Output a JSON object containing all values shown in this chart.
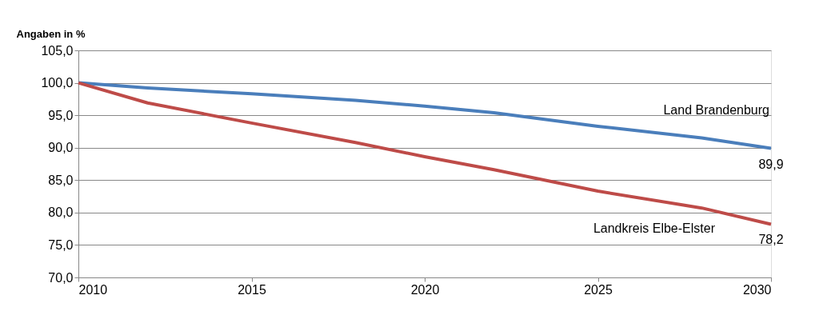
{
  "chart_data": {
    "type": "line",
    "ylabel": "Angaben in %",
    "x": [
      2010,
      2012,
      2015,
      2018,
      2020,
      2022,
      2025,
      2028,
      2030
    ],
    "series": [
      {
        "name": "Land Brandenburg",
        "color": "#4a7ebb",
        "values": [
          100,
          99.2,
          98.3,
          97.3,
          96.4,
          95.4,
          93.3,
          91.5,
          89.9
        ],
        "value_labels": [
          null,
          null,
          null,
          null,
          null,
          null,
          null,
          null,
          "89,9"
        ]
      },
      {
        "name": "Landkreis  Elbe-Elster",
        "color": "#be4b48",
        "values": [
          100,
          96.9,
          93.8,
          90.8,
          88.6,
          86.6,
          83.3,
          80.7,
          78.2
        ],
        "value_labels": [
          null,
          null,
          null,
          null,
          null,
          null,
          null,
          null,
          "78,2"
        ]
      }
    ],
    "xlim": [
      2010,
      2030
    ],
    "xticks": [
      2010,
      2015,
      2020,
      2025,
      2030
    ],
    "ylim": [
      70,
      105
    ],
    "yticks": [
      {
        "value": 70,
        "label": "70,0"
      },
      {
        "value": 75,
        "label": "75,0"
      },
      {
        "value": 80,
        "label": "80,0"
      },
      {
        "value": 85,
        "label": "85,0"
      },
      {
        "value": 90,
        "label": "90,0"
      },
      {
        "value": 95,
        "label": "95,0"
      },
      {
        "value": 100,
        "label": "100,0"
      },
      {
        "value": 105,
        "label": "105,0"
      }
    ],
    "grid": "y",
    "marker": "none",
    "line_style": "solid"
  }
}
